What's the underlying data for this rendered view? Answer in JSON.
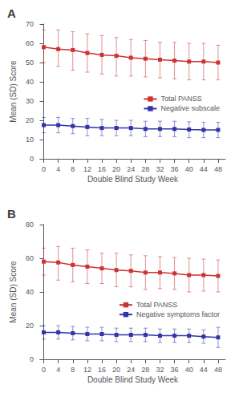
{
  "chart_data": [
    {
      "type": "line",
      "title": "A",
      "xlabel": "Double Blind Study Week",
      "ylabel": "Mean (SD) Score",
      "x": [
        0,
        4,
        8,
        12,
        16,
        20,
        24,
        28,
        32,
        36,
        40,
        44,
        48
      ],
      "xlim": [
        -1,
        50
      ],
      "xticks": [
        0,
        4,
        8,
        12,
        16,
        20,
        24,
        28,
        32,
        36,
        40,
        44,
        48
      ],
      "ylim": [
        0,
        70
      ],
      "yticks": [
        0,
        10,
        20,
        30,
        40,
        50,
        60,
        70
      ],
      "grid": false,
      "legend": "right",
      "series": [
        {
          "name": "Total PANSS",
          "color": "#cc3333",
          "marker": "square",
          "values": [
            58,
            57,
            56.5,
            55,
            54,
            53.5,
            52.5,
            52,
            51.5,
            51,
            50.5,
            50.5,
            50
          ],
          "error_upper": [
            9,
            10,
            9.5,
            10,
            10,
            9.5,
            9.5,
            9.5,
            9,
            9.5,
            9.5,
            9.5,
            9
          ],
          "error_lower": [
            8,
            9,
            10.5,
            10,
            10,
            10.5,
            9.5,
            9.5,
            9.5,
            9.5,
            9.5,
            9.5,
            9
          ]
        },
        {
          "name": "Negative subscale",
          "color": "#3333aa",
          "marker": "square",
          "values": [
            17.5,
            17.5,
            17,
            16.5,
            16,
            16,
            16,
            15.5,
            15.5,
            15.5,
            15.2,
            15,
            15
          ],
          "error_upper": [
            4,
            4,
            4,
            4.5,
            4.5,
            4,
            4,
            4,
            4,
            4,
            4,
            4,
            4
          ],
          "error_lower": [
            4,
            4,
            4,
            4.5,
            4,
            4,
            4,
            4,
            4,
            4,
            4.2,
            4,
            4
          ]
        }
      ]
    },
    {
      "type": "line",
      "title": "B",
      "xlabel": "Double Blind Study Week",
      "ylabel": "Mean (SD) Score",
      "x": [
        0,
        4,
        8,
        12,
        16,
        20,
        24,
        28,
        32,
        36,
        40,
        44,
        48
      ],
      "xlim": [
        -1,
        50
      ],
      "xticks": [
        0,
        4,
        8,
        12,
        16,
        20,
        24,
        28,
        32,
        36,
        40,
        44,
        48
      ],
      "ylim": [
        0,
        80
      ],
      "yticks": [
        0,
        20,
        40,
        60,
        80
      ],
      "grid": false,
      "legend": "right",
      "series": [
        {
          "name": "Total PANSS",
          "color": "#cc3333",
          "marker": "square",
          "values": [
            58,
            57.5,
            56,
            55,
            54,
            53,
            52.5,
            51.5,
            51.5,
            51,
            50,
            50,
            49.5
          ],
          "error_upper": [
            8,
            9.5,
            10,
            10,
            9,
            10,
            9.5,
            10,
            9.5,
            9.5,
            10,
            9.5,
            9.5
          ],
          "error_lower": [
            8,
            10.5,
            10,
            10,
            9,
            10,
            9.5,
            10,
            9.5,
            9.5,
            10,
            9.5,
            9.5
          ]
        },
        {
          "name": "Negative symptoms factor",
          "color": "#3333aa",
          "marker": "square",
          "values": [
            16,
            16,
            15.5,
            15,
            15,
            14.5,
            14.5,
            14.5,
            14,
            14,
            14,
            13.5,
            13
          ],
          "error_upper": [
            4,
            4,
            4,
            4,
            4,
            4,
            4,
            4,
            4,
            4,
            4,
            4,
            6
          ],
          "error_lower": [
            4,
            4,
            4,
            4,
            4,
            4,
            4,
            4,
            4,
            4,
            4,
            4,
            6
          ]
        }
      ]
    }
  ]
}
